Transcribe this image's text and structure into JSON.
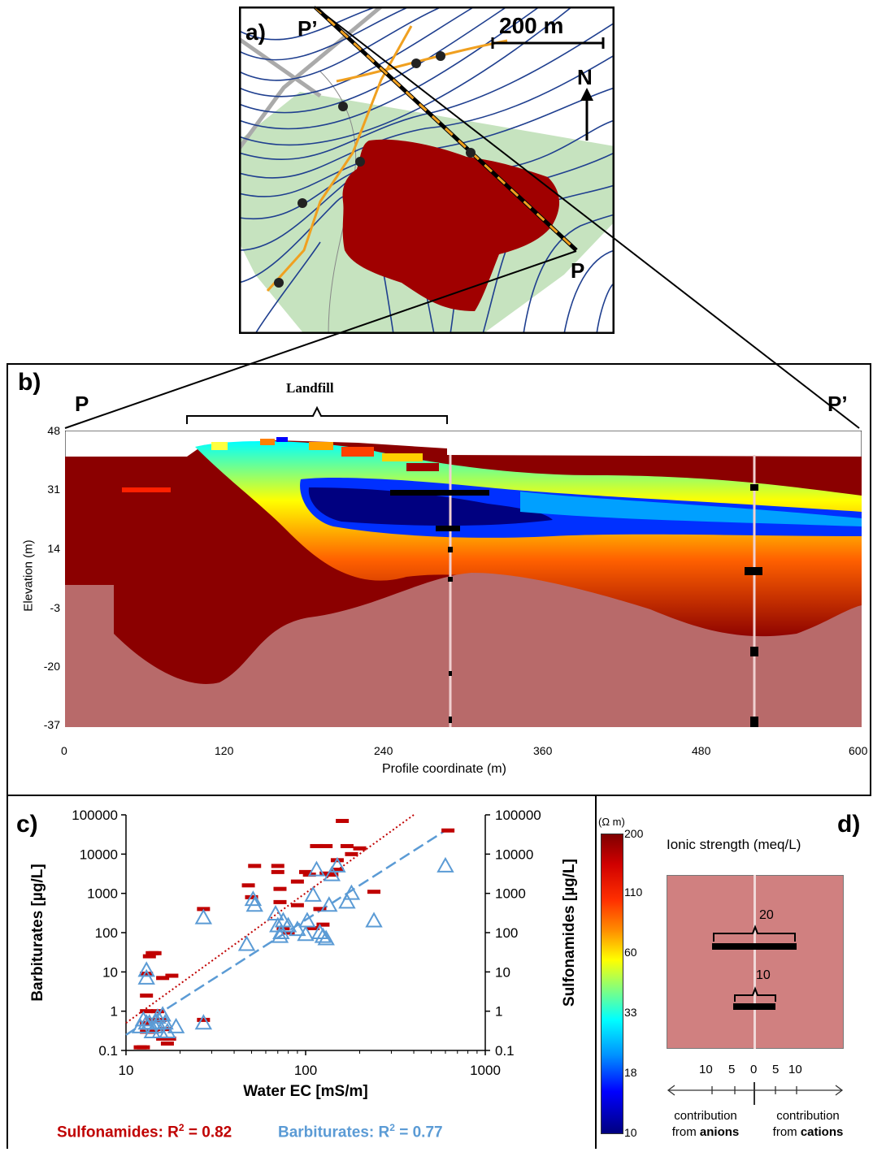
{
  "panel_a": {
    "label": "a)",
    "scale_label": "200 m",
    "north_label": "N",
    "p_prime_label": "P’",
    "p_label": "P"
  },
  "panel_b": {
    "label": "b)",
    "left_label": "P",
    "right_label": "P’",
    "landfill_label": "Landfill",
    "xlabel": "Profile coordinate (m)",
    "ylabel": "Elevation (m)",
    "x_ticks": [
      "0",
      "120",
      "240",
      "360",
      "480",
      "600"
    ],
    "y_ticks": [
      "48",
      "31",
      "14",
      "-3",
      "-20",
      "-37"
    ]
  },
  "colorbar": {
    "unit": "(Ω m)",
    "ticks": [
      "200",
      "110",
      "60",
      "33",
      "18",
      "10"
    ]
  },
  "panel_d": {
    "label": "d)",
    "title": "Ionic strength (meq/L)",
    "bar20": "20",
    "bar10": "10",
    "axis_ticks": [
      "10",
      "5",
      "0",
      "5",
      "10"
    ],
    "left_line1": "contribution",
    "left_line2a": "from ",
    "left_line2b": "anions",
    "right_line1": "contribution",
    "right_line2a": "from ",
    "right_line2b": "cations"
  },
  "chart_data": {
    "type": "scatter",
    "label": "c)",
    "xlabel": "Water EC [mS/m]",
    "ylabel_left": "Barbiturates [µg/L]",
    "ylabel_right": "Sulfonamides [µg/L]",
    "xscale": "log",
    "yscale": "log",
    "xlim": [
      10,
      1000
    ],
    "ylim": [
      0.1,
      100000
    ],
    "x_ticks": [
      "10",
      "100",
      "1000"
    ],
    "y_ticks": [
      "0.1",
      "1",
      "10",
      "100",
      "1000",
      "10000",
      "100000"
    ],
    "legend_sulfonamides": "Sulfonamides: R",
    "legend_barbiturates": "Barbiturates: R",
    "r2_sulfonamides": "= 0.82",
    "r2_barbiturates": "= 0.77",
    "colors": {
      "sulfonamides": "#c00000",
      "barbiturates": "#5b9bd5"
    },
    "series": [
      {
        "name": "Sulfonamides",
        "marker": "dash",
        "points": [
          [
            12,
            0.12
          ],
          [
            12.5,
            0.12
          ],
          [
            13,
            0.3
          ],
          [
            13,
            0.5
          ],
          [
            13,
            1
          ],
          [
            13,
            2.5
          ],
          [
            13,
            9
          ],
          [
            13.5,
            25
          ],
          [
            14,
            30
          ],
          [
            14.5,
            30
          ],
          [
            14,
            0.3
          ],
          [
            14,
            0.6
          ],
          [
            15,
            1
          ],
          [
            15.5,
            0.6
          ],
          [
            16,
            0.2
          ],
          [
            16,
            7
          ],
          [
            16.5,
            0.35
          ],
          [
            17,
            0.15
          ],
          [
            17.5,
            0.2
          ],
          [
            18,
            8
          ],
          [
            27,
            400
          ],
          [
            27,
            0.6
          ],
          [
            48,
            1600
          ],
          [
            50,
            800
          ],
          [
            52,
            5000
          ],
          [
            70,
            5000
          ],
          [
            70,
            3500
          ],
          [
            72,
            1300
          ],
          [
            72,
            600
          ],
          [
            75,
            130
          ],
          [
            80,
            100
          ],
          [
            90,
            2000
          ],
          [
            90,
            500
          ],
          [
            100,
            3500
          ],
          [
            105,
            3000
          ],
          [
            110,
            130
          ],
          [
            115,
            16000
          ],
          [
            120,
            400
          ],
          [
            125,
            160
          ],
          [
            130,
            3200
          ],
          [
            130,
            16000
          ],
          [
            140,
            3000
          ],
          [
            150,
            4000
          ],
          [
            150,
            7000
          ],
          [
            160,
            70000
          ],
          [
            170,
            16000
          ],
          [
            180,
            10000
          ],
          [
            200,
            14000
          ],
          [
            240,
            1100
          ],
          [
            620,
            40000
          ]
        ],
        "trend": [
          [
            10,
            0.5
          ],
          [
            400,
            100000
          ]
        ]
      },
      {
        "name": "Barbiturates",
        "marker": "triangle",
        "points": [
          [
            12,
            0.4
          ],
          [
            12.5,
            0.6
          ],
          [
            13,
            0.5
          ],
          [
            13,
            7
          ],
          [
            13,
            11
          ],
          [
            13.5,
            0.5
          ],
          [
            14,
            0.3
          ],
          [
            14.5,
            0.4
          ],
          [
            15,
            0.5
          ],
          [
            15,
            0.7
          ],
          [
            15.5,
            0.3
          ],
          [
            16,
            0.8
          ],
          [
            16.5,
            0.5
          ],
          [
            17,
            0.3
          ],
          [
            19,
            0.4
          ],
          [
            27,
            0.5
          ],
          [
            27,
            240
          ],
          [
            47,
            50
          ],
          [
            51,
            700
          ],
          [
            52,
            500
          ],
          [
            68,
            300
          ],
          [
            70,
            150
          ],
          [
            72,
            80
          ],
          [
            73,
            100
          ],
          [
            75,
            200
          ],
          [
            80,
            150
          ],
          [
            90,
            120
          ],
          [
            100,
            90
          ],
          [
            102,
            200
          ],
          [
            110,
            900
          ],
          [
            115,
            4000
          ],
          [
            120,
            100
          ],
          [
            125,
            80
          ],
          [
            130,
            70
          ],
          [
            135,
            500
          ],
          [
            140,
            3000
          ],
          [
            150,
            5000
          ],
          [
            170,
            600
          ],
          [
            180,
            1000
          ],
          [
            240,
            200
          ],
          [
            600,
            5000
          ]
        ],
        "trend": [
          [
            10,
            0.25
          ],
          [
            600,
            40000
          ]
        ]
      }
    ]
  }
}
